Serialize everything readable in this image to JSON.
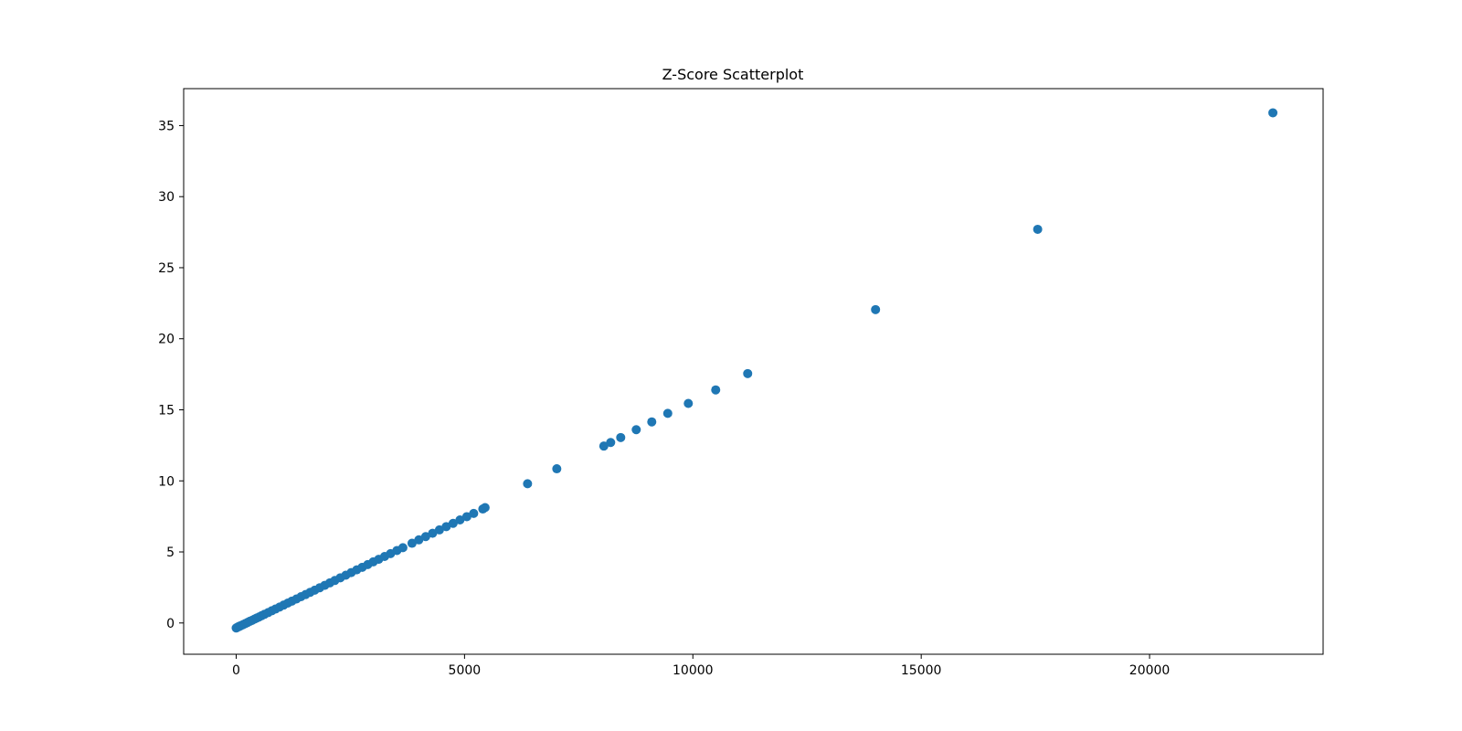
{
  "chart_data": {
    "type": "scatter",
    "title": "Z-Score Scatterplot",
    "xlabel": "",
    "ylabel": "",
    "xlim": [
      -1150,
      23800
    ],
    "ylim": [
      -2.2,
      37.6
    ],
    "x_ticks": [
      0,
      5000,
      10000,
      15000,
      20000
    ],
    "y_ticks": [
      0,
      5,
      10,
      15,
      20,
      25,
      30,
      35
    ],
    "grid": false,
    "legend": "none",
    "marker_color": "#1f77b4",
    "series": [
      {
        "points": [
          [
            0,
            -0.35
          ],
          [
            20,
            -0.32
          ],
          [
            40,
            -0.28
          ],
          [
            60,
            -0.25
          ],
          [
            80,
            -0.22
          ],
          [
            100,
            -0.19
          ],
          [
            130,
            -0.15
          ],
          [
            160,
            -0.1
          ],
          [
            200,
            -0.04
          ],
          [
            250,
            0.04
          ],
          [
            300,
            0.12
          ],
          [
            350,
            0.19
          ],
          [
            400,
            0.27
          ],
          [
            450,
            0.35
          ],
          [
            500,
            0.42
          ],
          [
            560,
            0.52
          ],
          [
            620,
            0.61
          ],
          [
            700,
            0.73
          ],
          [
            780,
            0.86
          ],
          [
            860,
            0.98
          ],
          [
            950,
            1.12
          ],
          [
            1040,
            1.26
          ],
          [
            1130,
            1.4
          ],
          [
            1220,
            1.54
          ],
          [
            1320,
            1.69
          ],
          [
            1420,
            1.85
          ],
          [
            1520,
            2.0
          ],
          [
            1620,
            2.16
          ],
          [
            1720,
            2.31
          ],
          [
            1830,
            2.48
          ],
          [
            1940,
            2.65
          ],
          [
            2050,
            2.82
          ],
          [
            2160,
            2.99
          ],
          [
            2280,
            3.18
          ],
          [
            2400,
            3.36
          ],
          [
            2520,
            3.55
          ],
          [
            2640,
            3.74
          ],
          [
            2760,
            3.92
          ],
          [
            2880,
            4.11
          ],
          [
            3000,
            4.3
          ],
          [
            3120,
            4.48
          ],
          [
            3250,
            4.68
          ],
          [
            3380,
            4.88
          ],
          [
            3520,
            5.1
          ],
          [
            3650,
            5.3
          ],
          [
            3850,
            5.61
          ],
          [
            4000,
            5.85
          ],
          [
            4150,
            6.08
          ],
          [
            4300,
            6.31
          ],
          [
            4450,
            6.55
          ],
          [
            4600,
            6.78
          ],
          [
            4750,
            7.01
          ],
          [
            4900,
            7.25
          ],
          [
            5050,
            7.48
          ],
          [
            5200,
            7.71
          ],
          [
            5400,
            8.02
          ],
          [
            5450,
            8.12
          ],
          [
            6380,
            9.8
          ],
          [
            7020,
            10.85
          ],
          [
            8050,
            12.45
          ],
          [
            8200,
            12.7
          ],
          [
            8420,
            13.05
          ],
          [
            8760,
            13.6
          ],
          [
            9100,
            14.15
          ],
          [
            9450,
            14.75
          ],
          [
            9900,
            15.45
          ],
          [
            10500,
            16.4
          ],
          [
            11200,
            17.55
          ],
          [
            14000,
            22.05
          ],
          [
            17550,
            27.7
          ],
          [
            22700,
            35.9
          ]
        ]
      }
    ]
  }
}
